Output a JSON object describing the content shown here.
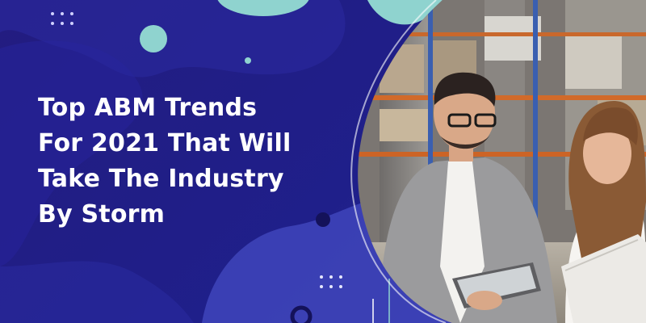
{
  "headline": {
    "lines": [
      "Top ABM Trends",
      "For 2021 That Will",
      "Take The Industry",
      "By Storm"
    ]
  },
  "colors": {
    "background": "#211d7c",
    "blob_light": "#3a3fb4",
    "accent_teal": "#8fd3cf",
    "accent_navy": "#14125a",
    "text": "#ffffff"
  },
  "photo": {
    "icon": "business-people-warehouse-photo"
  }
}
